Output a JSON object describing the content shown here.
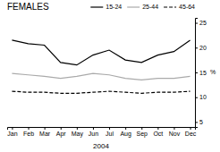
{
  "chart_data": {
    "type": "line",
    "title": "FEMALES",
    "xlabel": "2004",
    "ylabel": "%",
    "categories": [
      "Jan",
      "Feb",
      "Mar",
      "Apr",
      "May",
      "Jun",
      "Jul",
      "Aug",
      "Sep",
      "Oct",
      "Nov",
      "Dec"
    ],
    "series": [
      {
        "name": "15-24",
        "color": "#000000",
        "line_style": "solid",
        "values": [
          21.5,
          20.8,
          20.5,
          17.0,
          16.5,
          18.5,
          19.5,
          17.5,
          17.0,
          18.5,
          19.2,
          21.5
        ]
      },
      {
        "name": "25-44",
        "color": "#aaaaaa",
        "line_style": "solid",
        "values": [
          14.8,
          14.5,
          14.2,
          13.8,
          14.2,
          14.8,
          14.5,
          13.8,
          13.5,
          13.8,
          13.8,
          14.2
        ]
      },
      {
        "name": "45-64",
        "color": "#000000",
        "line_style": "dashed",
        "values": [
          11.2,
          11.0,
          11.0,
          10.8,
          10.8,
          11.0,
          11.2,
          11.0,
          10.8,
          11.0,
          11.0,
          11.2
        ]
      }
    ],
    "ylim": [
      4,
      26
    ],
    "yticks": [
      5,
      10,
      15,
      20,
      25
    ],
    "legend": "upper right"
  }
}
